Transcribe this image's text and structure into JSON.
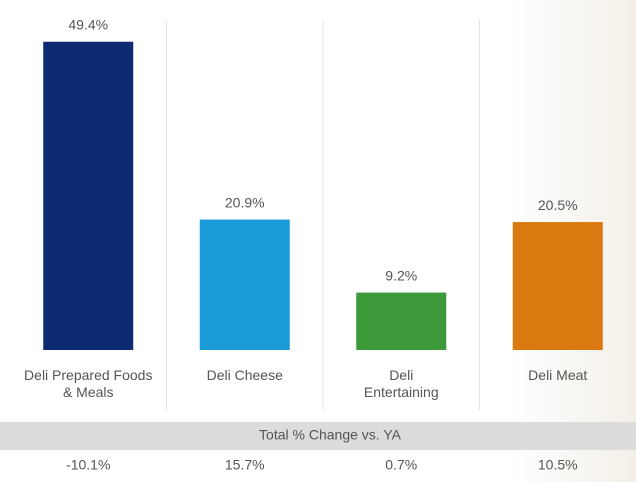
{
  "chart_data": {
    "type": "bar",
    "categories": [
      "Deli Prepared Foods & Meals",
      "Deli Cheese",
      "Deli Entertaining",
      "Deli Meat"
    ],
    "values": [
      49.4,
      20.9,
      9.2,
      20.5
    ],
    "value_labels": [
      "49.4%",
      "20.9%",
      "9.2%",
      "20.5%"
    ],
    "colors": [
      "#0b2a6f",
      "#1a9bd7",
      "#3d9a3b",
      "#d9790f"
    ],
    "ylim": [
      0,
      50
    ],
    "change_row": {
      "label": "Total % Change vs. YA",
      "cells": [
        "-10.1%",
        "15.7%",
        "0.7%",
        "10.5%"
      ]
    }
  }
}
